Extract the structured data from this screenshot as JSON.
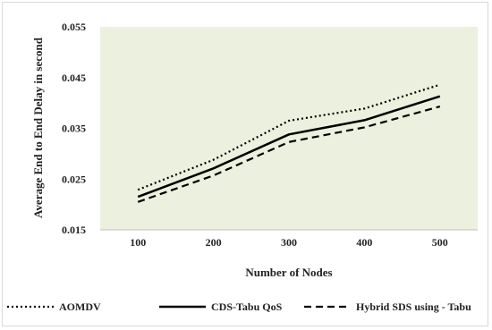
{
  "chart_data": {
    "type": "line",
    "title": "",
    "xlabel": "Number of Nodes",
    "ylabel": "Average End to End Delay in second",
    "categories": [
      "100",
      "200",
      "300",
      "400",
      "500"
    ],
    "ylim": [
      0.015,
      0.055
    ],
    "yticks": [
      "0.015",
      "0.025",
      "0.035",
      "0.045",
      "0.055"
    ],
    "ytick_values": [
      0.015,
      0.025,
      0.035,
      0.045,
      0.055
    ],
    "plot_background": "#ebf1de",
    "grid": false,
    "legend_position": "bottom",
    "series": [
      {
        "name": "AOMDV",
        "style": "dotted",
        "color": "#000000",
        "values": [
          0.0229,
          0.0288,
          0.0365,
          0.0389,
          0.0436
        ]
      },
      {
        "name": "CDS-Tabu QoS",
        "style": "solid",
        "color": "#000000",
        "values": [
          0.0215,
          0.0271,
          0.0338,
          0.0366,
          0.0413
        ]
      },
      {
        "name": "Hybrid SDS using - Tabu",
        "style": "dashed",
        "color": "#000000",
        "values": [
          0.0205,
          0.0257,
          0.0323,
          0.0352,
          0.0393
        ]
      }
    ]
  }
}
